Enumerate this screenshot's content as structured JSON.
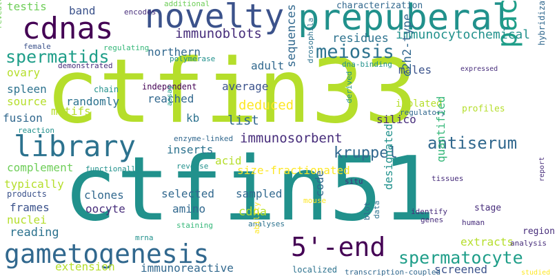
{
  "palette": {
    "lime": "#b5de2b",
    "green": "#6ece58",
    "teal": "#21918c",
    "blue_teal": "#2c728e",
    "slate": "#3b528b",
    "indigo": "#472d7b",
    "purple": "#440154",
    "light_green": "#35b779",
    "yellow": "#fde725",
    "sea": "#1f9e89",
    "steel": "#31688e"
  },
  "words": [
    {
      "text": "ctfin33"
    },
    {
      "text": "ctfin51"
    },
    {
      "text": "prepuberal"
    },
    {
      "text": "novelty"
    },
    {
      "text": "cdnas"
    },
    {
      "text": "library"
    },
    {
      "text": "pachytene"
    },
    {
      "text": "gametogenesis"
    },
    {
      "text": "5'-end"
    },
    {
      "text": "spermatocyte"
    },
    {
      "text": "meiosis"
    },
    {
      "text": "spermatids"
    },
    {
      "text": "antiserum"
    },
    {
      "text": "kruppel"
    },
    {
      "text": "immunosorbent"
    },
    {
      "text": "immunoblots"
    },
    {
      "text": "immunocytochemical"
    },
    {
      "text": "residues"
    },
    {
      "text": "testis"
    },
    {
      "text": "band"
    },
    {
      "text": "encodes"
    },
    {
      "text": "additional"
    },
    {
      "text": "characterization"
    },
    {
      "text": "female"
    },
    {
      "text": "revealed"
    },
    {
      "text": "regulating"
    },
    {
      "text": "polymerase"
    },
    {
      "text": "northern"
    },
    {
      "text": "ovary"
    },
    {
      "text": "demonstrated"
    },
    {
      "text": "dna-binding"
    },
    {
      "text": "expressed"
    },
    {
      "text": "hybridization"
    },
    {
      "text": "males"
    },
    {
      "text": "adult"
    },
    {
      "text": "drosophila"
    },
    {
      "text": "c2h2-type"
    },
    {
      "text": "sequences"
    },
    {
      "text": "spleen"
    },
    {
      "text": "chain"
    },
    {
      "text": "independent"
    },
    {
      "text": "average"
    },
    {
      "text": "source"
    },
    {
      "text": "randomly"
    },
    {
      "text": "reached"
    },
    {
      "text": "deduced"
    },
    {
      "text": "list"
    },
    {
      "text": "motifs"
    },
    {
      "text": "fusion"
    },
    {
      "text": "assay"
    },
    {
      "text": "kb"
    },
    {
      "text": "isolated"
    },
    {
      "text": "regulatory"
    },
    {
      "text": "profiles"
    },
    {
      "text": "derived"
    },
    {
      "text": "reaction"
    },
    {
      "text": "enzyme-linked"
    },
    {
      "text": "inserts"
    },
    {
      "text": "silico"
    },
    {
      "text": "complement"
    },
    {
      "text": "acid"
    },
    {
      "text": "functionally"
    },
    {
      "text": "reverse"
    },
    {
      "text": "size-fractionated"
    },
    {
      "text": "typically"
    },
    {
      "text": "situ"
    },
    {
      "text": "tissues"
    },
    {
      "text": "products"
    },
    {
      "text": "report"
    },
    {
      "text": "frames"
    },
    {
      "text": "clones"
    },
    {
      "text": "amino"
    },
    {
      "text": "selected"
    },
    {
      "text": "sampled"
    },
    {
      "text": "cdna"
    },
    {
      "text": "nuclei"
    },
    {
      "text": "oocyte"
    },
    {
      "text": "code"
    },
    {
      "text": "designated"
    },
    {
      "text": "quantified"
    },
    {
      "text": "screened"
    },
    {
      "text": "mouse"
    },
    {
      "text": "identify"
    },
    {
      "text": "genes"
    },
    {
      "text": "stage"
    },
    {
      "text": "human"
    },
    {
      "text": "reading"
    },
    {
      "text": "staining"
    },
    {
      "text": "analyses"
    },
    {
      "text": "blot"
    },
    {
      "text": "data"
    },
    {
      "text": "region"
    },
    {
      "text": "extracts"
    },
    {
      "text": "analysis"
    },
    {
      "text": "extension"
    },
    {
      "text": "immunoreactive"
    },
    {
      "text": "mrna"
    },
    {
      "text": "ability"
    },
    {
      "text": "localized"
    },
    {
      "text": "transcription-coupled"
    },
    {
      "text": "studied"
    }
  ]
}
